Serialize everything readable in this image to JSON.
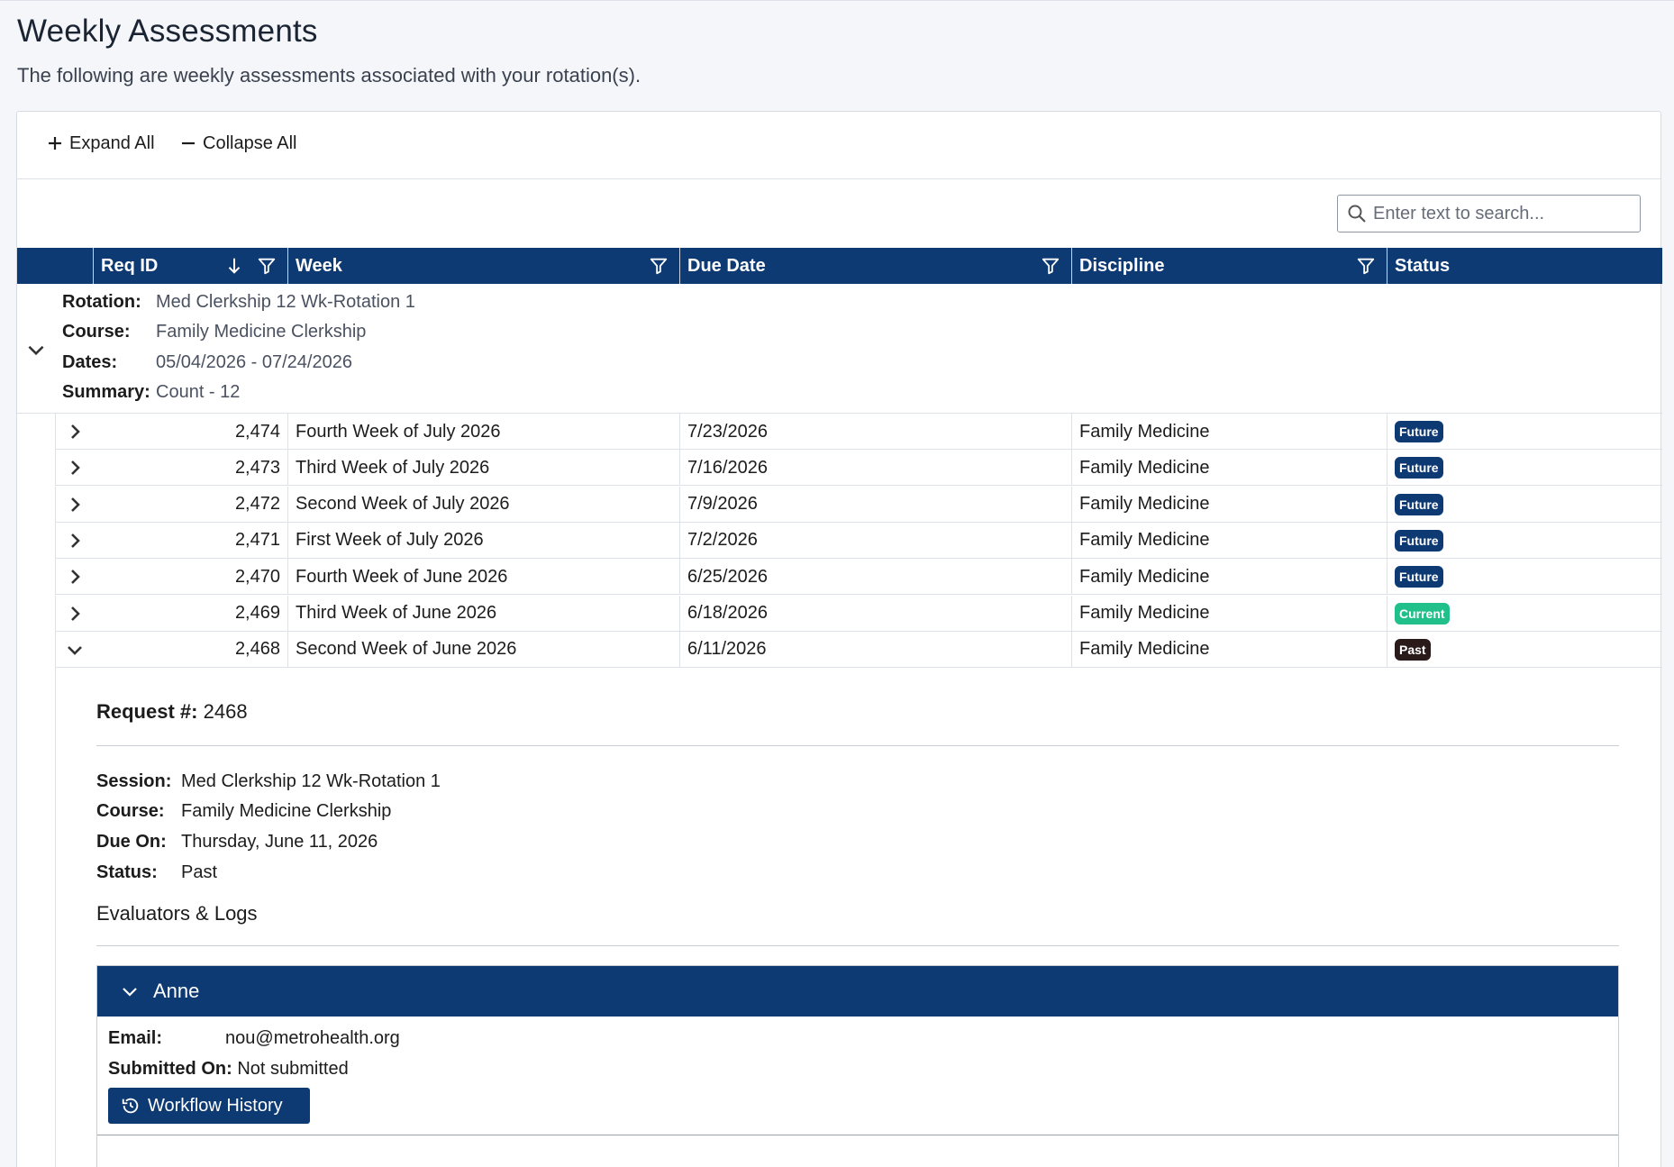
{
  "page": {
    "title": "Weekly Assessments",
    "subtitle": "The following are weekly assessments associated with your rotation(s)."
  },
  "toolbar": {
    "expand_all": "Expand All",
    "collapse_all": "Collapse All"
  },
  "search": {
    "placeholder": "Enter text to search..."
  },
  "columns": {
    "req_id": "Req ID",
    "week": "Week",
    "due_date": "Due Date",
    "discipline": "Discipline",
    "status": "Status"
  },
  "group": {
    "rotation_label": "Rotation:",
    "rotation": "Med Clerkship 12 Wk-Rotation 1",
    "course_label": "Course:",
    "course": "Family Medicine Clerkship",
    "dates_label": "Dates:",
    "dates": "05/04/2026 - 07/24/2026",
    "summary_label": "Summary:",
    "summary": "Count - 12"
  },
  "rows": [
    {
      "id": "2,474",
      "week": "Fourth Week of July 2026",
      "due": "7/23/2026",
      "discipline": "Family Medicine",
      "status": "Future"
    },
    {
      "id": "2,473",
      "week": "Third Week of July 2026",
      "due": "7/16/2026",
      "discipline": "Family Medicine",
      "status": "Future"
    },
    {
      "id": "2,472",
      "week": "Second Week of July 2026",
      "due": "7/9/2026",
      "discipline": "Family Medicine",
      "status": "Future"
    },
    {
      "id": "2,471",
      "week": "First Week of July 2026",
      "due": "7/2/2026",
      "discipline": "Family Medicine",
      "status": "Future"
    },
    {
      "id": "2,470",
      "week": "Fourth Week of June 2026",
      "due": "6/25/2026",
      "discipline": "Family Medicine",
      "status": "Future"
    },
    {
      "id": "2,469",
      "week": "Third Week of June 2026",
      "due": "6/18/2026",
      "discipline": "Family Medicine",
      "status": "Current"
    },
    {
      "id": "2,468",
      "week": "Second Week of June 2026",
      "due": "6/11/2026",
      "discipline": "Family Medicine",
      "status": "Past"
    }
  ],
  "detail": {
    "request_label": "Request #:",
    "request_number": "2468",
    "session_label": "Session:",
    "session": "Med Clerkship 12 Wk-Rotation 1",
    "course_label": "Course:",
    "course": "Family Medicine Clerkship",
    "due_label": "Due On:",
    "due": "Thursday, June 11, 2026",
    "status_label": "Status:",
    "status": "Past",
    "evaluators_title": "Evaluators & Logs",
    "evaluator": {
      "name": "Anne",
      "email_label": "Email:",
      "email": "nou@metrohealth.org",
      "submitted_label": "Submitted On:",
      "submitted": "Not submitted",
      "workflow_button": "Workflow History"
    }
  },
  "colors": {
    "header_bg": "#0e3a74",
    "future_badge": "#0e3a74",
    "current_badge": "#21c08b",
    "past_badge": "#2b1a1a"
  },
  "icons": {
    "expand": "plus-icon",
    "collapse": "minus-icon",
    "search": "search-icon",
    "sort": "arrow-down-icon",
    "filter": "filter-icon",
    "row_collapsed": "chevron-right-icon",
    "row_expanded": "chevron-down-icon",
    "workflow": "history-icon"
  }
}
